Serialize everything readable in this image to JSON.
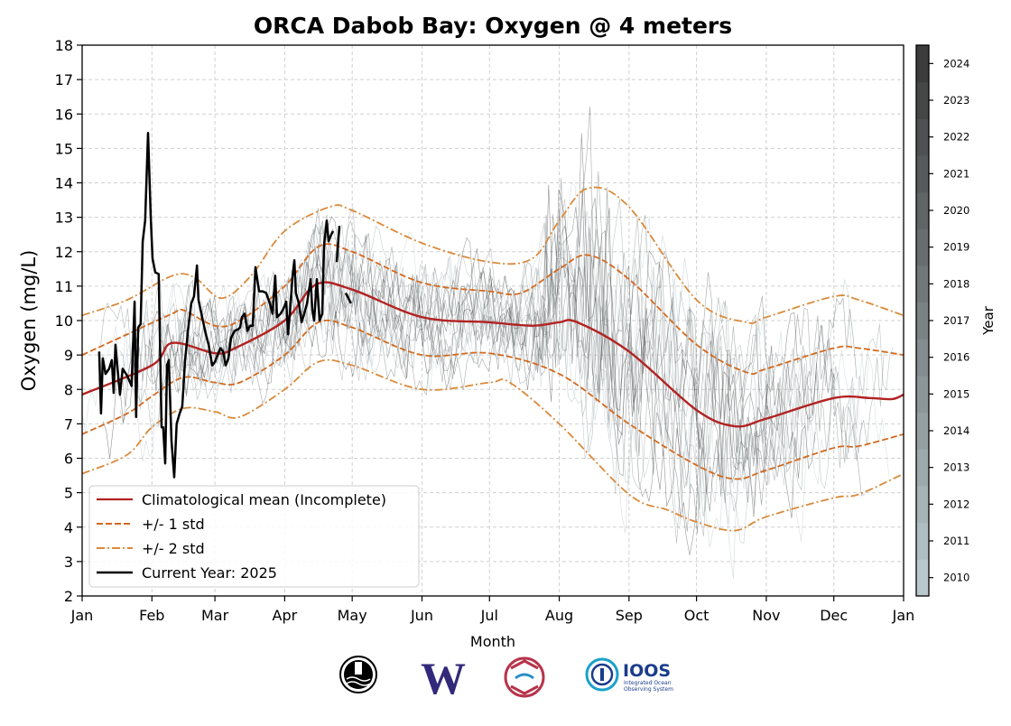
{
  "chart_data": {
    "type": "line",
    "title": "ORCA Dabob Bay: Oxygen @ 4 meters",
    "xlabel": "Month",
    "ylabel": "Oxygen (mg/L)",
    "ylim": [
      2,
      18
    ],
    "yticks": [
      2,
      3,
      4,
      5,
      6,
      7,
      8,
      9,
      10,
      11,
      12,
      13,
      14,
      15,
      16,
      17,
      18
    ],
    "xlim_day_of_year": [
      0,
      365
    ],
    "xticks": [
      {
        "label": "Jan",
        "day": 0
      },
      {
        "label": "Feb",
        "day": 31
      },
      {
        "label": "Mar",
        "day": 59
      },
      {
        "label": "Apr",
        "day": 90
      },
      {
        "label": "May",
        "day": 120
      },
      {
        "label": "Jun",
        "day": 151
      },
      {
        "label": "Jul",
        "day": 181
      },
      {
        "label": "Aug",
        "day": 212
      },
      {
        "label": "Sep",
        "day": 243
      },
      {
        "label": "Oct",
        "day": 273
      },
      {
        "label": "Nov",
        "day": 304
      },
      {
        "label": "Dec",
        "day": 334
      },
      {
        "label": "Jan",
        "day": 365
      }
    ],
    "grid": true,
    "legend_placement": "lower-left",
    "colorbar": {
      "label": "Year",
      "ticks": [
        "2010",
        "2011",
        "2012",
        "2013",
        "2014",
        "2015",
        "2016",
        "2017",
        "2018",
        "2019",
        "2020",
        "2021",
        "2022",
        "2023",
        "2024"
      ],
      "color_low": "#b8c8cc",
      "color_high": "#3c3c3c"
    },
    "series": [
      {
        "name": "Climatological mean (Incomplete)",
        "color": "#b22222",
        "style": "solid",
        "points": [
          [
            0,
            7.85
          ],
          [
            31,
            8.7
          ],
          [
            40,
            9.35
          ],
          [
            59,
            9.05
          ],
          [
            68,
            9.2
          ],
          [
            90,
            10.0
          ],
          [
            104,
            11.05
          ],
          [
            120,
            10.9
          ],
          [
            151,
            10.1
          ],
          [
            181,
            9.95
          ],
          [
            200,
            9.85
          ],
          [
            212,
            9.95
          ],
          [
            220,
            9.95
          ],
          [
            243,
            9.1
          ],
          [
            273,
            7.4
          ],
          [
            290,
            6.93
          ],
          [
            304,
            7.15
          ],
          [
            334,
            7.75
          ],
          [
            350,
            7.75
          ],
          [
            360,
            7.72
          ],
          [
            365,
            7.85
          ]
        ]
      },
      {
        "name": "+/- 1 std",
        "color": "#d2691e",
        "style": "dashed",
        "points": [
          [
            0,
            9.0
          ],
          [
            20,
            9.6
          ],
          [
            40,
            10.2
          ],
          [
            45,
            10.3
          ],
          [
            59,
            9.85
          ],
          [
            70,
            10.0
          ],
          [
            90,
            11.0
          ],
          [
            105,
            12.15
          ],
          [
            120,
            12.0
          ],
          [
            151,
            11.1
          ],
          [
            181,
            10.85
          ],
          [
            195,
            10.8
          ],
          [
            212,
            11.5
          ],
          [
            225,
            11.9
          ],
          [
            243,
            11.2
          ],
          [
            273,
            9.3
          ],
          [
            295,
            8.5
          ],
          [
            304,
            8.6
          ],
          [
            334,
            9.2
          ],
          [
            345,
            9.2
          ],
          [
            365,
            9.0
          ]
        ]
      },
      {
        "name": "",
        "color": "#d2691e",
        "style": "dashed",
        "points": [
          [
            0,
            6.7
          ],
          [
            20,
            7.3
          ],
          [
            31,
            7.8
          ],
          [
            45,
            8.35
          ],
          [
            59,
            8.2
          ],
          [
            70,
            8.2
          ],
          [
            90,
            9.0
          ],
          [
            105,
            9.95
          ],
          [
            120,
            9.8
          ],
          [
            151,
            9.0
          ],
          [
            181,
            9.05
          ],
          [
            212,
            8.45
          ],
          [
            243,
            7.0
          ],
          [
            273,
            5.8
          ],
          [
            290,
            5.4
          ],
          [
            304,
            5.65
          ],
          [
            334,
            6.3
          ],
          [
            345,
            6.35
          ],
          [
            365,
            6.7
          ]
        ]
      },
      {
        "name": "+/- 2 std",
        "color": "#d98a3a",
        "style": "dashdot",
        "points": [
          [
            0,
            10.15
          ],
          [
            20,
            10.6
          ],
          [
            40,
            11.3
          ],
          [
            50,
            11.25
          ],
          [
            62,
            10.65
          ],
          [
            75,
            11.3
          ],
          [
            90,
            12.6
          ],
          [
            110,
            13.3
          ],
          [
            120,
            13.2
          ],
          [
            151,
            12.25
          ],
          [
            181,
            11.7
          ],
          [
            200,
            11.8
          ],
          [
            212,
            12.9
          ],
          [
            225,
            13.85
          ],
          [
            243,
            13.3
          ],
          [
            273,
            10.6
          ],
          [
            295,
            9.95
          ],
          [
            304,
            10.1
          ],
          [
            334,
            10.7
          ],
          [
            345,
            10.6
          ],
          [
            365,
            10.15
          ]
        ]
      },
      {
        "name": "",
        "color": "#d98a3a",
        "style": "dashdot",
        "points": [
          [
            0,
            5.55
          ],
          [
            20,
            6.1
          ],
          [
            31,
            6.9
          ],
          [
            45,
            7.45
          ],
          [
            59,
            7.35
          ],
          [
            70,
            7.2
          ],
          [
            90,
            8.0
          ],
          [
            105,
            8.8
          ],
          [
            120,
            8.7
          ],
          [
            151,
            8.0
          ],
          [
            181,
            8.2
          ],
          [
            190,
            8.2
          ],
          [
            212,
            7.0
          ],
          [
            243,
            4.95
          ],
          [
            260,
            4.5
          ],
          [
            273,
            4.15
          ],
          [
            290,
            3.9
          ],
          [
            304,
            4.3
          ],
          [
            334,
            4.85
          ],
          [
            345,
            4.95
          ],
          [
            365,
            5.55
          ]
        ]
      },
      {
        "name": "Current Year: 2025",
        "color": "#000000",
        "style": "solid",
        "width": 2.5,
        "segments": [
          [
            [
              7.6,
              9.1
            ],
            [
              8.4,
              7.3
            ],
            [
              9.2,
              8.9
            ],
            [
              10.4,
              8.45
            ],
            [
              12,
              8.6
            ],
            [
              13.2,
              8.85
            ],
            [
              14,
              7.9
            ],
            [
              14.8,
              9.3
            ],
            [
              16,
              8.4
            ],
            [
              16.8,
              7.85
            ],
            [
              18,
              8.6
            ],
            [
              20,
              8.4
            ],
            [
              22,
              8.1
            ],
            [
              23.3,
              10.55
            ],
            [
              24,
              7.2
            ],
            [
              24.9,
              9.8
            ],
            [
              26,
              9.9
            ],
            [
              26.9,
              12.3
            ],
            [
              28,
              12.9
            ],
            [
              29.3,
              15.45
            ],
            [
              30.5,
              13.0
            ],
            [
              31.3,
              11.8
            ],
            [
              32.5,
              11.4
            ],
            [
              34,
              11.35
            ],
            [
              35.3,
              6.9
            ],
            [
              36,
              6.9
            ],
            [
              36.9,
              5.85
            ],
            [
              37.7,
              8.7
            ],
            [
              38.5,
              8.85
            ],
            [
              39.7,
              6.5
            ],
            [
              40.9,
              5.45
            ],
            [
              42,
              7.0
            ],
            [
              43.3,
              7.3
            ],
            [
              44.5,
              7.5
            ],
            [
              45.7,
              8.8
            ],
            [
              47,
              9.7
            ],
            [
              48.5,
              10.5
            ],
            [
              49.7,
              10.7
            ],
            [
              51,
              11.6
            ],
            [
              51.7,
              10.6
            ],
            [
              53.3,
              10.1
            ],
            [
              55,
              9.6
            ],
            [
              56.2,
              9.3
            ],
            [
              57.8,
              8.7
            ],
            [
              59,
              8.8
            ],
            [
              60.2,
              9.0
            ],
            [
              61.4,
              9.2
            ],
            [
              62.6,
              9.1
            ],
            [
              63.8,
              8.7
            ],
            [
              65,
              8.9
            ],
            [
              66.2,
              9.5
            ],
            [
              67.8,
              9.7
            ],
            [
              69.4,
              9.75
            ],
            [
              70.2,
              9.8
            ],
            [
              71,
              10.1
            ],
            [
              72.2,
              10.2
            ],
            [
              73.4,
              9.7
            ],
            [
              74.6,
              9.85
            ],
            [
              75.8,
              9.85
            ],
            [
              77,
              11.55
            ],
            [
              78.6,
              10.85
            ],
            [
              80.2,
              10.85
            ],
            [
              81.8,
              10.8
            ],
            [
              83.4,
              10.5
            ],
            [
              84.6,
              10.2
            ],
            [
              85.8,
              11.3
            ],
            [
              86.6,
              10.1
            ],
            [
              88.2,
              10.2
            ],
            [
              89.5,
              10.35
            ],
            [
              90.7,
              10.55
            ],
            [
              91.5,
              9.6
            ],
            [
              92.3,
              10.2
            ],
            [
              93.5,
              11.3
            ],
            [
              94.3,
              11.75
            ],
            [
              95,
              10.8
            ],
            [
              96.3,
              10.5
            ],
            [
              97.5,
              9.95
            ],
            [
              98.7,
              10.2
            ],
            [
              99.9,
              10.5
            ],
            [
              101.5,
              11.2
            ],
            [
              102.3,
              10.3
            ],
            [
              103.1,
              10.0
            ],
            [
              104.3,
              11.2
            ],
            [
              105.5,
              10.0
            ],
            [
              106.7,
              10.2
            ],
            [
              107.5,
              12.2
            ],
            [
              108.7,
              12.9
            ],
            [
              109.5,
              12.3
            ],
            [
              110.7,
              12.5
            ],
            [
              111.5,
              12.6
            ]
          ],
          [
            [
              113.1,
              11.7
            ],
            [
              114.3,
              12.75
            ]
          ],
          [
            [
              117.1,
              10.8
            ],
            [
              119.5,
              10.5
            ]
          ]
        ]
      }
    ]
  },
  "logos": [
    "Buoy observatory seal",
    "W",
    "NANOOS",
    "IOOS Integrated Ocean Observing System"
  ]
}
